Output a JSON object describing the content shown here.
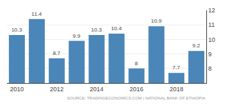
{
  "chart_data": {
    "type": "bar",
    "categories": [
      "2010",
      null,
      "2012",
      null,
      "2014",
      null,
      "2016",
      null,
      "2018",
      null
    ],
    "values": [
      10.3,
      11.4,
      8.7,
      9.9,
      10.3,
      10.4,
      8.0,
      10.9,
      7.7,
      9.2
    ],
    "color": "#4a86b8",
    "ylim": [
      7,
      12
    ],
    "yticks": [
      8,
      9,
      10,
      11,
      12
    ],
    "grid": true,
    "data_labels": true,
    "annotations": [
      "SOURCE: TRADINGECONOMICS.COM | NATIONAL BANK OF ETHIOPIA"
    ]
  }
}
